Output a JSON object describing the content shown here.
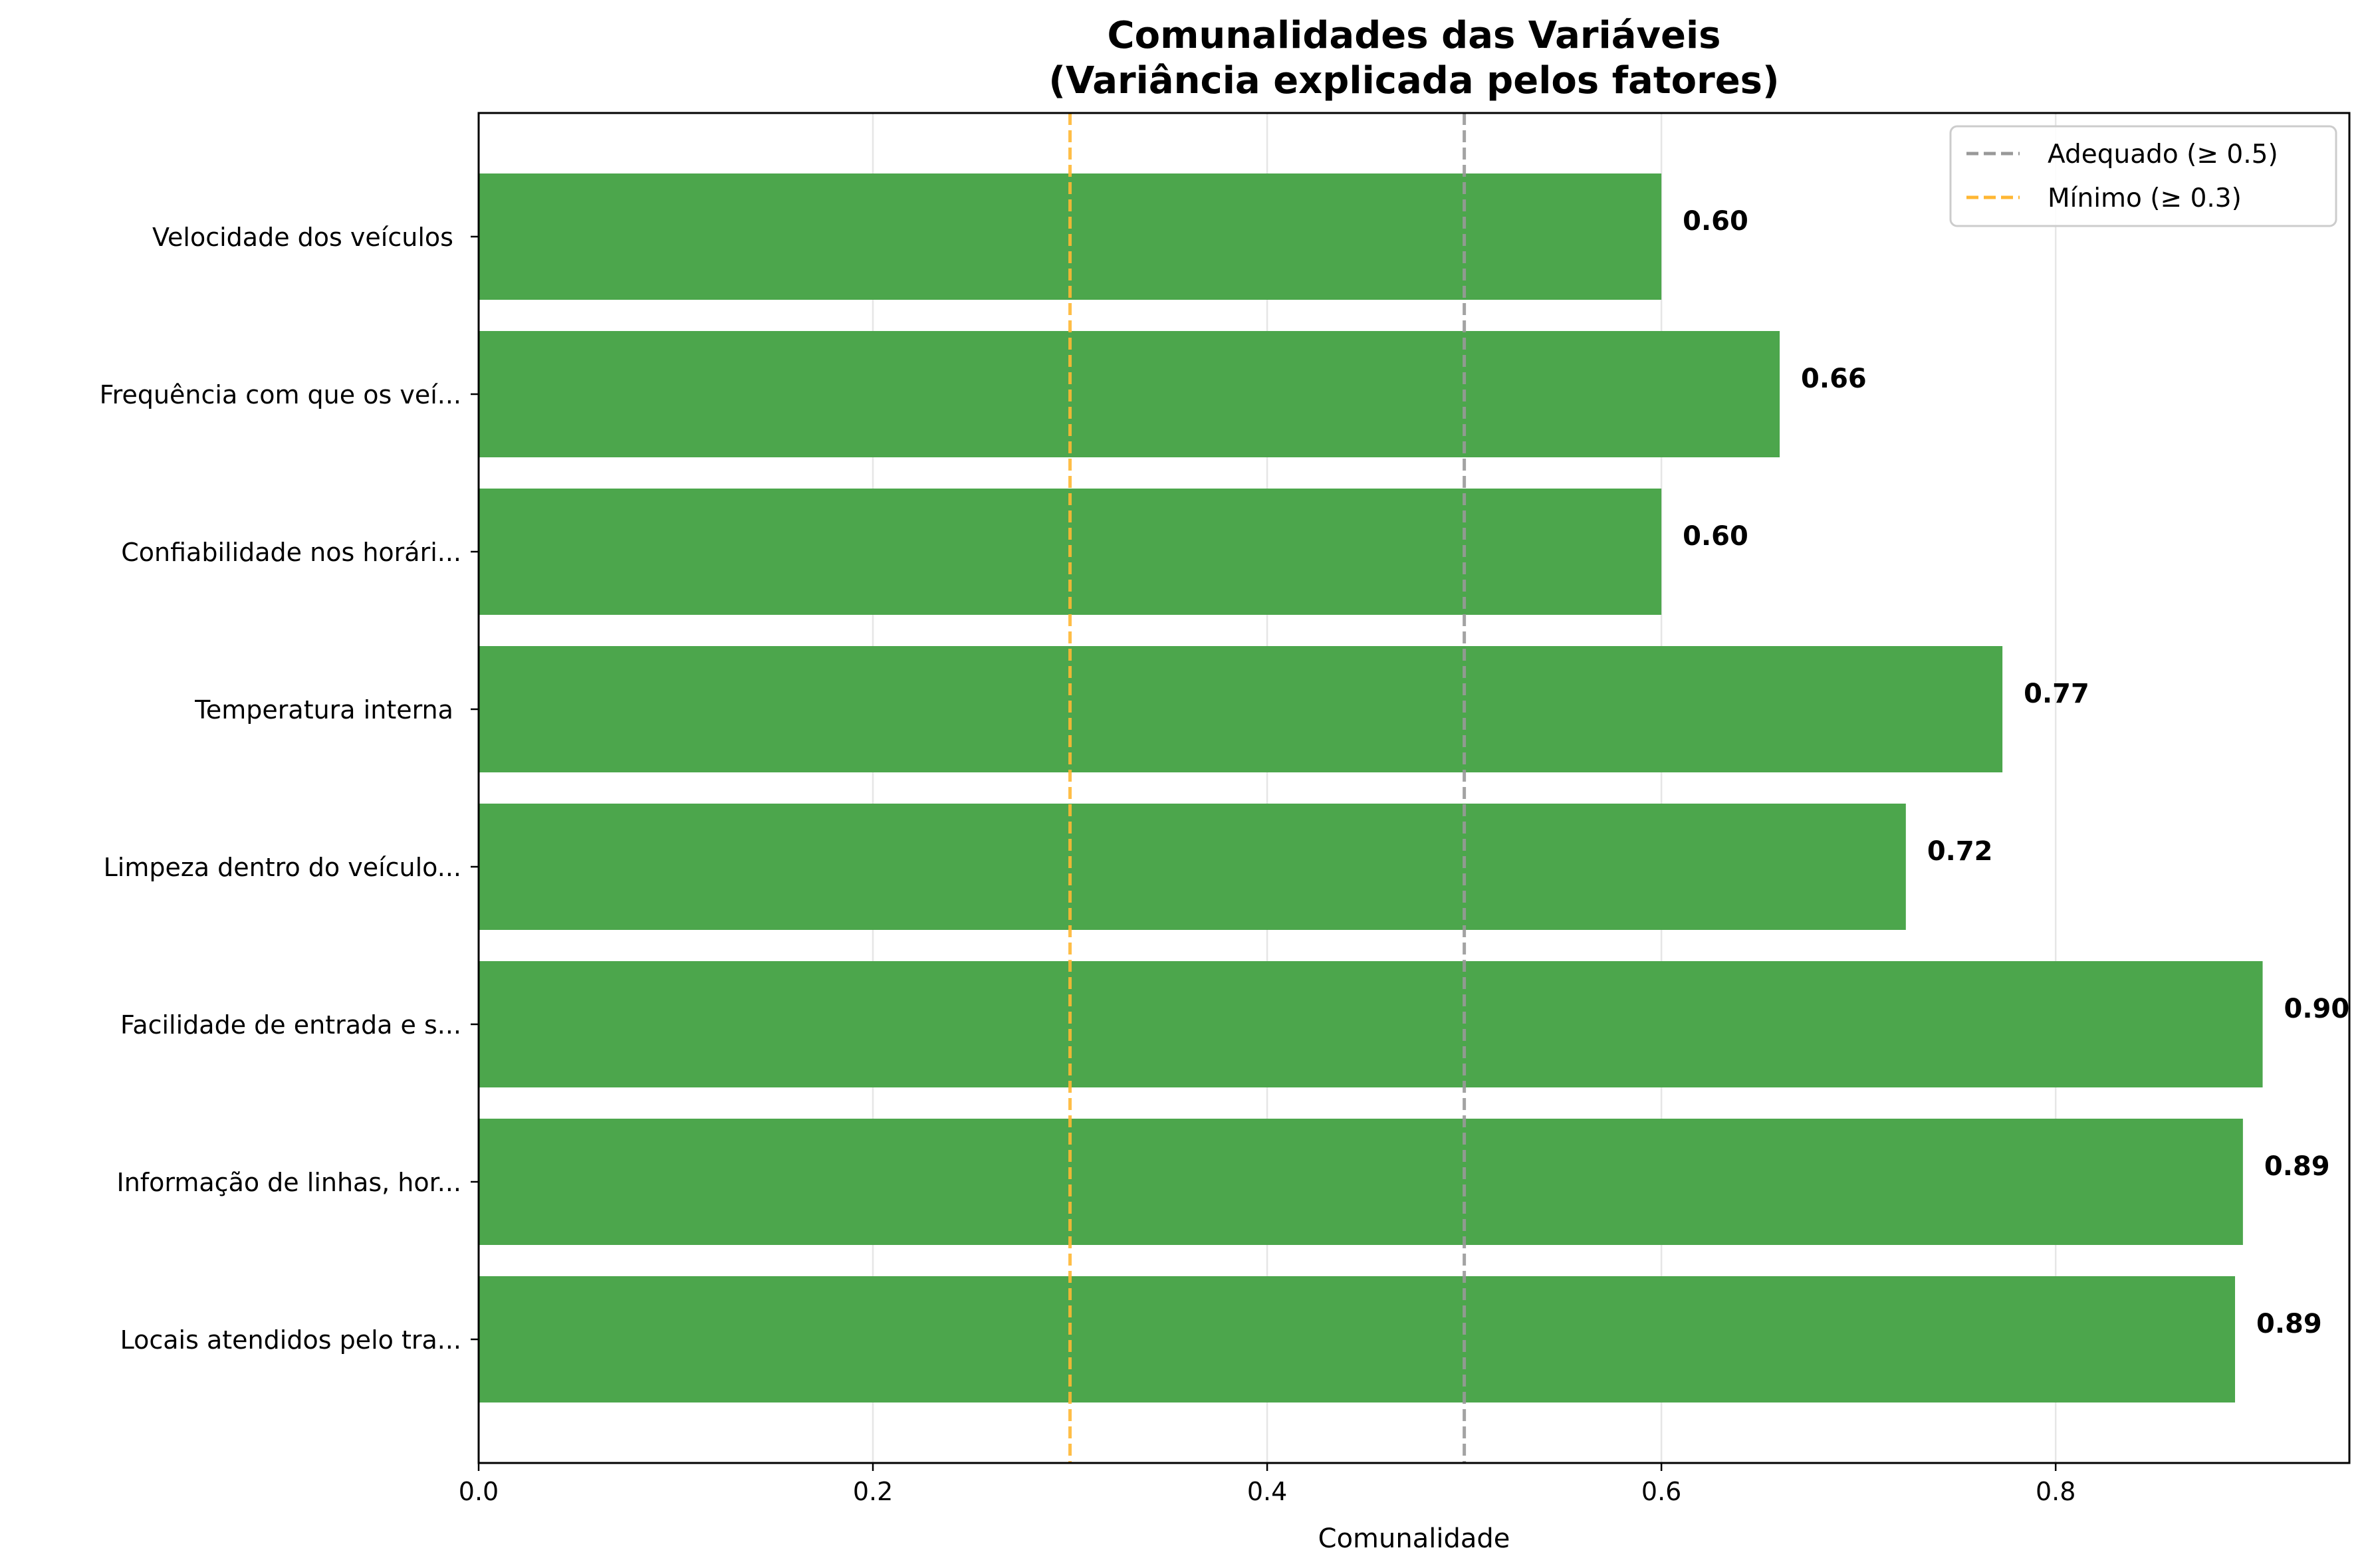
{
  "chart_data": {
    "type": "bar",
    "orientation": "horizontal",
    "title_lines": [
      "Comunalidades das Variáveis",
      "(Variância explicada pelos fatores)"
    ],
    "xlabel": "Comunalidade",
    "ylabel": "",
    "xlim": [
      0,
      0.949
    ],
    "xticks": [
      0.0,
      0.2,
      0.4,
      0.6,
      0.8
    ],
    "xtick_labels": [
      "0.0",
      "0.2",
      "0.4",
      "0.6",
      "0.8"
    ],
    "grid": "vertical",
    "bar_color": "#4ca64c",
    "categories": [
      "Velocidade dos veículos ",
      "Frequência com que os veí...",
      "Confiabilidade nos horári...",
      "Temperatura interna ",
      "Limpeza dentro do veículo...",
      "Facilidade de entrada e s...",
      "Informação de linhas, hor...",
      "Locais atendidos pelo tra..."
    ],
    "values": [
      0.6,
      0.66,
      0.6,
      0.773,
      0.724,
      0.905,
      0.895,
      0.891
    ],
    "value_labels": [
      "0.60",
      "0.66",
      "0.60",
      "0.77",
      "0.72",
      "0.90",
      "0.89",
      "0.89"
    ],
    "reference_lines": [
      {
        "value": 0.5,
        "label": "Adequado (≥ 0.5)",
        "color": "#999999",
        "style": "dashed"
      },
      {
        "value": 0.3,
        "label": "Mínimo (≥ 0.3)",
        "color": "#ffb733",
        "style": "dashed"
      }
    ],
    "legend_position": "top-right"
  }
}
